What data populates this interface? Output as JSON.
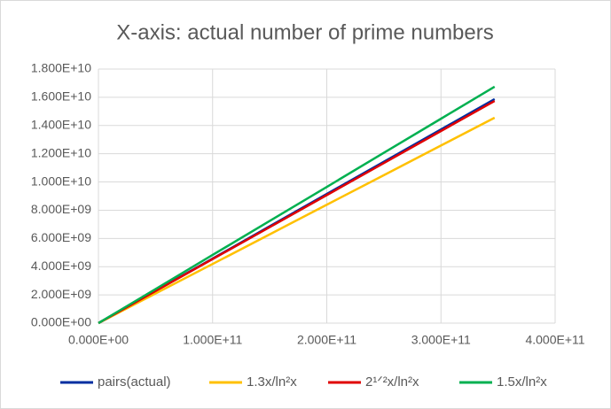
{
  "chart_data": {
    "type": "line",
    "title": "X-axis: actual number of prime numbers",
    "x": [
      0,
      50000000000,
      100000000000,
      150000000000,
      200000000000,
      250000000000,
      300000000000,
      347000000000
    ],
    "series": [
      {
        "name": "pairs(actual)",
        "color": "#002ea0",
        "values": [
          0,
          2290000000,
          4570000000,
          6860000000,
          9150000000,
          11430000000,
          13720000000,
          15870000000
        ]
      },
      {
        "name": "1.3x/ln²x",
        "color": "#ffc000",
        "values": [
          0,
          2100000000,
          4190000000,
          6290000000,
          8390000000,
          10480000000,
          12580000000,
          14550000000
        ]
      },
      {
        "name": "2¹ᐟ²x/ln²x",
        "color": "#e00000",
        "values": [
          0,
          2270000000,
          4540000000,
          6800000000,
          9070000000,
          11340000000,
          13610000000,
          15740000000
        ]
      },
      {
        "name": "1.5x/ln²x",
        "color": "#00b050",
        "values": [
          0,
          2410000000,
          4830000000,
          7240000000,
          9650000000,
          12070000000,
          14480000000,
          16750000000
        ]
      }
    ],
    "xlim": [
      0,
      400000000000
    ],
    "xticks": [
      {
        "value": 0,
        "label": "0.000E+00"
      },
      {
        "value": 100000000000,
        "label": "1.000E+11"
      },
      {
        "value": 200000000000,
        "label": "2.000E+11"
      },
      {
        "value": 300000000000,
        "label": "3.000E+11"
      },
      {
        "value": 400000000000,
        "label": "4.000E+11"
      }
    ],
    "ylim": [
      0,
      18000000000
    ],
    "yticks": [
      {
        "value": 0,
        "label": "0.000E+00"
      },
      {
        "value": 2000000000,
        "label": "2.000E+09"
      },
      {
        "value": 4000000000,
        "label": "4.000E+09"
      },
      {
        "value": 6000000000,
        "label": "6.000E+09"
      },
      {
        "value": 8000000000,
        "label": "8.000E+09"
      },
      {
        "value": 10000000000,
        "label": "1.000E+10"
      },
      {
        "value": 12000000000,
        "label": "1.200E+10"
      },
      {
        "value": 14000000000,
        "label": "1.400E+10"
      },
      {
        "value": 16000000000,
        "label": "1.600E+10"
      },
      {
        "value": 18000000000,
        "label": "1.800E+10"
      }
    ],
    "grid": true,
    "legend": "bottom"
  }
}
